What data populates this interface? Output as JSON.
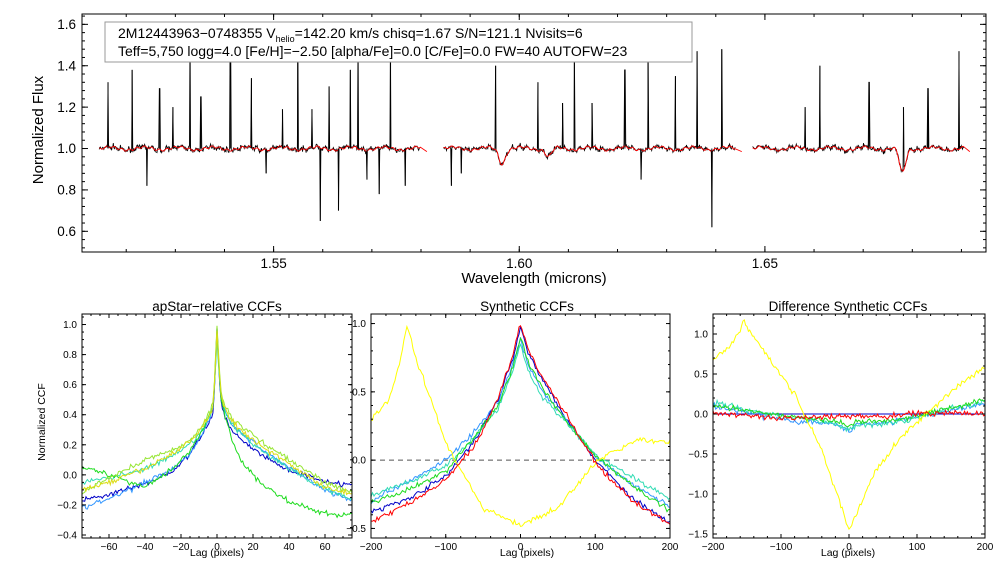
{
  "chart_data": [
    {
      "type": "line",
      "name": "spectrum",
      "annotation": {
        "line1_pre": "2M12443963−0748355  V",
        "line1_sub": "helio",
        "line1_post": "=142.20 km/s  chisq=1.67  S/N=121.1  Nvisits=6",
        "line2": "Teff=5,750 logg=4.0 [Fe/H]=−2.50 [alpha/Fe]=0.0 [C/Fe]=0.0 FW=40 AUTOFW=23"
      },
      "xlabel": "Wavelength (microns)",
      "ylabel": "Normalized Flux",
      "xlim": [
        1.511,
        1.695
      ],
      "ylim": [
        0.5,
        1.65
      ],
      "xticks": [
        1.55,
        1.6,
        1.65
      ],
      "xtick_labels": [
        "1.55",
        "1.60",
        "1.65"
      ],
      "yticks": [
        0.6,
        0.8,
        1.0,
        1.2,
        1.4,
        1.6
      ],
      "ytick_labels": [
        "0.6",
        "0.8",
        "1.0",
        "1.2",
        "1.4",
        "1.6"
      ],
      "chips": [
        [
          1.5145,
          1.58
        ],
        [
          1.5846,
          1.6441
        ],
        [
          1.6475,
          1.6905
        ]
      ],
      "series": [
        {
          "name": "observed",
          "color": "#000000",
          "spikes": [
            [
              1.5163,
              1.32
            ],
            [
              1.5212,
              1.38
            ],
            [
              1.5242,
              0.82
            ],
            [
              1.5268,
              1.29
            ],
            [
              1.5295,
              1.2
            ],
            [
              1.533,
              1.55
            ],
            [
              1.5352,
              1.25
            ],
            [
              1.5412,
              1.55
            ],
            [
              1.5455,
              1.34
            ],
            [
              1.5485,
              0.88
            ],
            [
              1.5518,
              1.19
            ],
            [
              1.5549,
              1.52
            ],
            [
              1.5578,
              1.19
            ],
            [
              1.5595,
              0.65
            ],
            [
              1.5613,
              1.3
            ],
            [
              1.5632,
              0.7
            ],
            [
              1.5656,
              1.38
            ],
            [
              1.5672,
              1.52
            ],
            [
              1.569,
              0.85
            ],
            [
              1.5715,
              0.78
            ],
            [
              1.5738,
              1.55
            ],
            [
              1.5768,
              0.82
            ],
            [
              1.5862,
              0.82
            ],
            [
              1.5882,
              0.88
            ],
            [
              1.5952,
              1.4
            ],
            [
              1.6038,
              1.32
            ],
            [
              1.6088,
              1.22
            ],
            [
              1.6112,
              1.43
            ],
            [
              1.6148,
              1.22
            ],
            [
              1.6215,
              1.38
            ],
            [
              1.6248,
              0.85
            ],
            [
              1.6262,
              1.45
            ],
            [
              1.6318,
              1.35
            ],
            [
              1.6362,
              1.47
            ],
            [
              1.6392,
              0.62
            ],
            [
              1.6412,
              1.48
            ],
            [
              1.6582,
              1.2
            ],
            [
              1.6612,
              1.4
            ],
            [
              1.6712,
              1.32
            ],
            [
              1.6782,
              1.2
            ],
            [
              1.6832,
              1.29
            ],
            [
              1.6895,
              1.47
            ]
          ]
        },
        {
          "name": "model",
          "color": "#ff0000",
          "dips": [
            [
              1.5965,
              0.93
            ],
            [
              1.606,
              0.96
            ],
            [
              1.678,
              0.88
            ]
          ]
        }
      ]
    },
    {
      "type": "line",
      "title": "apStar−relative CCFs",
      "xlabel": "Lag (pixels)",
      "ylabel": "Normalized CCF",
      "xlim": [
        -75,
        75
      ],
      "ylim": [
        -0.42,
        1.07
      ],
      "xticks": [
        -60,
        -40,
        -20,
        0,
        20,
        40,
        60
      ],
      "xtick_labels": [
        "−60",
        "−40",
        "−20",
        "0",
        "20",
        "40",
        "60"
      ],
      "yticks": [
        -0.4,
        -0.2,
        0.0,
        0.2,
        0.4,
        0.6,
        0.8,
        1.0
      ],
      "ytick_labels": [
        "−0.4",
        "−0.2",
        "0.0",
        "0.2",
        "0.4",
        "0.6",
        "0.8",
        "1.0"
      ],
      "zero_line": false,
      "series": [
        {
          "name": "ccf-1",
          "color": "#0000c8",
          "x": [
            -75,
            -60,
            -40,
            -25,
            -15,
            -8,
            -4,
            -2,
            0,
            2,
            4,
            8,
            15,
            25,
            40,
            60,
            75
          ],
          "y": [
            -0.17,
            -0.13,
            -0.06,
            0.02,
            0.14,
            0.27,
            0.36,
            0.42,
            0.97,
            0.5,
            0.4,
            0.3,
            0.22,
            0.13,
            0.03,
            -0.04,
            -0.07
          ]
        },
        {
          "name": "ccf-2",
          "color": "#3296ff",
          "x": [
            -75,
            -60,
            -40,
            -25,
            -15,
            -8,
            -4,
            -2,
            0,
            2,
            4,
            8,
            15,
            25,
            40,
            60,
            75
          ],
          "y": [
            -0.22,
            -0.16,
            -0.05,
            0.04,
            0.14,
            0.28,
            0.38,
            0.46,
            0.93,
            0.52,
            0.44,
            0.34,
            0.26,
            0.17,
            0.05,
            -0.1,
            -0.17
          ]
        },
        {
          "name": "ccf-3",
          "color": "#32dcb4",
          "x": [
            -75,
            -60,
            -40,
            -25,
            -15,
            -8,
            -4,
            -2,
            0,
            2,
            4,
            8,
            15,
            25,
            40,
            60,
            75
          ],
          "y": [
            -0.05,
            -0.02,
            0.04,
            0.12,
            0.2,
            0.3,
            0.39,
            0.45,
            0.9,
            0.52,
            0.43,
            0.34,
            0.26,
            0.16,
            0.04,
            -0.09,
            -0.16
          ]
        },
        {
          "name": "ccf-4",
          "color": "#1edc1e",
          "x": [
            -75,
            -60,
            -40,
            -25,
            -15,
            -8,
            -4,
            -2,
            0,
            2,
            4,
            8,
            15,
            25,
            40,
            60,
            75
          ],
          "y": [
            0.06,
            0.0,
            -0.08,
            0.04,
            0.16,
            0.3,
            0.4,
            0.46,
            0.96,
            0.52,
            0.42,
            0.24,
            0.06,
            -0.06,
            -0.18,
            -0.26,
            -0.27
          ]
        },
        {
          "name": "ccf-5",
          "color": "#96e632",
          "x": [
            -75,
            -60,
            -40,
            -25,
            -15,
            -8,
            -4,
            -2,
            0,
            2,
            4,
            8,
            15,
            25,
            40,
            60,
            75
          ],
          "y": [
            -0.12,
            -0.02,
            0.1,
            0.16,
            0.23,
            0.33,
            0.42,
            0.48,
            1.0,
            0.56,
            0.48,
            0.38,
            0.31,
            0.22,
            0.1,
            -0.05,
            -0.12
          ]
        },
        {
          "name": "ccf-6",
          "color": "#dcdc14",
          "x": [
            -75,
            -60,
            -40,
            -25,
            -15,
            -8,
            -4,
            -2,
            0,
            2,
            4,
            8,
            15,
            25,
            40,
            60,
            75
          ],
          "y": [
            -0.1,
            -0.05,
            0.04,
            0.14,
            0.22,
            0.32,
            0.4,
            0.47,
            0.95,
            0.54,
            0.46,
            0.36,
            0.28,
            0.19,
            0.07,
            -0.08,
            -0.13
          ]
        }
      ]
    },
    {
      "type": "line",
      "title": "Synthetic CCFs",
      "xlabel": "Lag (pixels)",
      "ylabel": "",
      "xlim": [
        -200,
        200
      ],
      "ylim": [
        -0.57,
        1.07
      ],
      "xticks": [
        -200,
        -100,
        0,
        100,
        200
      ],
      "xtick_labels": [
        "−200",
        "−100",
        "0",
        "100",
        "200"
      ],
      "yticks": [
        -0.5,
        0.0,
        0.5,
        1.0
      ],
      "ytick_labels": [
        "−0.5",
        "0.0",
        "0.5",
        "1.0"
      ],
      "zero_line": true,
      "series": [
        {
          "name": "syn-1",
          "color": "#0000c8",
          "x": [
            -200,
            -150,
            -100,
            -60,
            -30,
            -10,
            0,
            10,
            30,
            60,
            100,
            150,
            200
          ],
          "y": [
            -0.38,
            -0.28,
            -0.12,
            0.15,
            0.45,
            0.75,
            0.97,
            0.8,
            0.58,
            0.32,
            0.0,
            -0.28,
            -0.46
          ]
        },
        {
          "name": "syn-2",
          "color": "#3296ff",
          "x": [
            -200,
            -150,
            -100,
            -60,
            -30,
            -10,
            0,
            10,
            30,
            60,
            100,
            150,
            200
          ],
          "y": [
            -0.3,
            -0.15,
            0.0,
            0.22,
            0.42,
            0.7,
            0.88,
            0.7,
            0.5,
            0.3,
            0.02,
            -0.18,
            -0.34
          ]
        },
        {
          "name": "syn-3",
          "color": "#32dcb4",
          "x": [
            -200,
            -150,
            -100,
            -60,
            -30,
            -10,
            0,
            10,
            30,
            60,
            100,
            150,
            200
          ],
          "y": [
            -0.26,
            -0.16,
            -0.04,
            0.18,
            0.38,
            0.65,
            0.86,
            0.66,
            0.46,
            0.28,
            0.04,
            -0.13,
            -0.28
          ]
        },
        {
          "name": "syn-4",
          "color": "#1edc1e",
          "x": [
            -200,
            -150,
            -100,
            -60,
            -30,
            -10,
            0,
            10,
            30,
            60,
            100,
            150,
            200
          ],
          "y": [
            -0.31,
            -0.22,
            -0.08,
            0.18,
            0.4,
            0.68,
            0.9,
            0.72,
            0.52,
            0.3,
            0.03,
            -0.19,
            -0.37
          ]
        },
        {
          "name": "syn-5",
          "color": "#ffff00",
          "x": [
            -200,
            -175,
            -160,
            -152,
            -140,
            -120,
            -100,
            -50,
            0,
            50,
            100,
            130,
            160,
            200
          ],
          "y": [
            0.3,
            0.45,
            0.75,
            1.0,
            0.75,
            0.45,
            0.12,
            -0.35,
            -0.48,
            -0.35,
            -0.02,
            0.08,
            0.15,
            0.13
          ]
        },
        {
          "name": "syn-6",
          "color": "#ff0000",
          "x": [
            -200,
            -150,
            -100,
            -60,
            -30,
            -10,
            0,
            10,
            30,
            60,
            100,
            150,
            200
          ],
          "y": [
            -0.45,
            -0.32,
            -0.15,
            0.12,
            0.45,
            0.78,
            1.0,
            0.82,
            0.6,
            0.34,
            -0.02,
            -0.3,
            -0.47
          ]
        }
      ]
    },
    {
      "type": "line",
      "title": "Difference Synthetic CCFs",
      "xlabel": "Lag (pixels)",
      "ylabel": "",
      "xlim": [
        -200,
        200
      ],
      "ylim": [
        -1.55,
        1.25
      ],
      "xticks": [
        -200,
        -100,
        0,
        100,
        200
      ],
      "xtick_labels": [
        "−200",
        "−100",
        "0",
        "100",
        "200"
      ],
      "yticks": [
        -1.5,
        -1.0,
        -0.5,
        0.0,
        0.5,
        1.0
      ],
      "ytick_labels": [
        "−1.5",
        "−1.0",
        "−0.5",
        "0.0",
        "0.5",
        "1.0"
      ],
      "zero_line": false,
      "series": [
        {
          "name": "diff-1",
          "color": "#0000c8",
          "x": [
            -200,
            -100,
            0,
            100,
            200
          ],
          "y": [
            0.0,
            0.0,
            0.0,
            0.0,
            0.0
          ]
        },
        {
          "name": "diff-2",
          "color": "#3296ff",
          "x": [
            -200,
            -150,
            -80,
            -20,
            0,
            10,
            50,
            100,
            150,
            200
          ],
          "y": [
            0.1,
            0.02,
            -0.1,
            -0.12,
            -0.22,
            -0.12,
            -0.12,
            -0.04,
            0.05,
            0.12
          ]
        },
        {
          "name": "diff-3",
          "color": "#32dcb4",
          "x": [
            -200,
            -150,
            -80,
            -20,
            0,
            10,
            50,
            100,
            150,
            200
          ],
          "y": [
            0.15,
            0.05,
            -0.05,
            -0.12,
            -0.2,
            -0.14,
            -0.12,
            -0.05,
            0.08,
            0.15
          ]
        },
        {
          "name": "diff-4",
          "color": "#1edc1e",
          "x": [
            -200,
            -150,
            -80,
            -20,
            0,
            10,
            50,
            100,
            150,
            200
          ],
          "y": [
            0.1,
            0.04,
            -0.04,
            -0.09,
            -0.16,
            -0.09,
            -0.09,
            -0.02,
            0.08,
            0.18
          ]
        },
        {
          "name": "diff-5",
          "color": "#ffff00",
          "x": [
            -200,
            -175,
            -160,
            -155,
            -145,
            -120,
            -80,
            -40,
            0,
            40,
            80,
            100,
            130,
            160,
            200
          ],
          "y": [
            0.68,
            0.85,
            1.05,
            1.18,
            1.02,
            0.72,
            0.25,
            -0.45,
            -1.45,
            -0.7,
            -0.25,
            -0.1,
            0.12,
            0.35,
            0.58
          ]
        },
        {
          "name": "diff-6",
          "color": "#ff0000",
          "x": [
            -200,
            -150,
            -100,
            -50,
            0,
            50,
            100,
            150,
            200
          ],
          "y": [
            0.02,
            -0.02,
            -0.06,
            -0.04,
            -0.02,
            -0.03,
            0.0,
            0.02,
            0.0
          ]
        }
      ]
    }
  ]
}
